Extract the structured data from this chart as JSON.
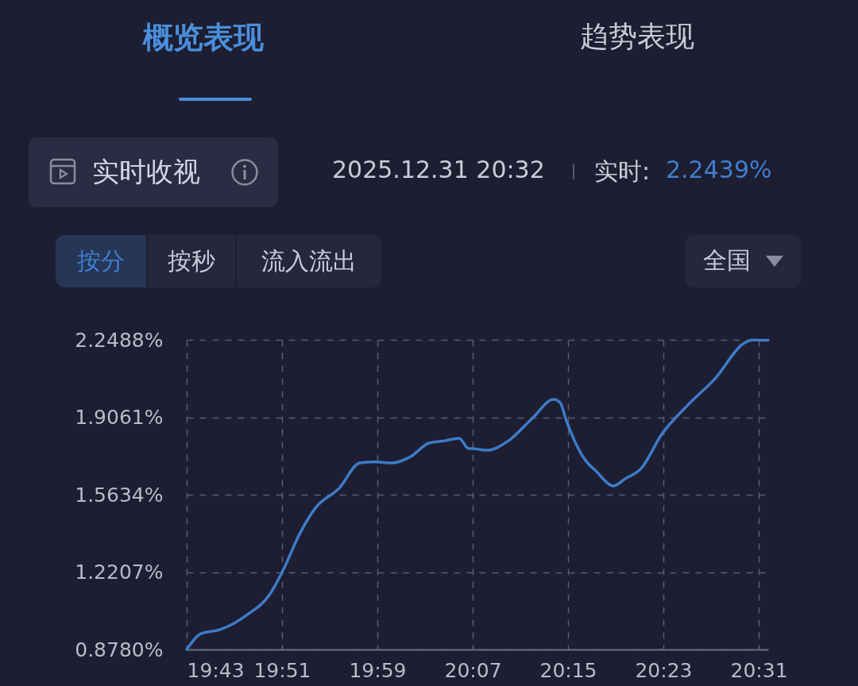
{
  "chart_data": {
    "type": "line",
    "title": "实时收视",
    "subtitle": "2025.12.31 20:32",
    "annotations": [
      "概览表现",
      "趋势表现",
      "实时:",
      "2.2439%",
      "按分",
      "按秒",
      "流入流出",
      "全国"
    ],
    "x": [
      19.7167,
      19.7367,
      19.7633,
      19.8,
      19.8333,
      19.8522,
      19.8744,
      19.8967,
      19.93,
      19.9589,
      19.9811,
      20.0033,
      20.03,
      20.0556,
      20.0778,
      20.0978,
      20.1111,
      20.1144,
      20.1367,
      20.1667,
      20.2,
      20.23,
      20.2389,
      20.2478,
      20.2744,
      20.2889,
      20.3133,
      20.33,
      20.3522,
      20.3811,
      20.4144,
      20.4556,
      20.4967,
      20.5078,
      20.53
    ],
    "series": [
      {
        "color": "#3d7bc8",
        "values": [
          0.878,
          0.948,
          0.966,
          1.029,
          1.124,
          1.233,
          1.388,
          1.504,
          1.592,
          1.704,
          1.708,
          1.704,
          1.732,
          1.792,
          1.802,
          1.813,
          1.767,
          1.767,
          1.76,
          1.802,
          1.901,
          1.985,
          1.971,
          1.89,
          1.715,
          1.669,
          1.602,
          1.634,
          1.679,
          1.831,
          1.95,
          2.077,
          2.235,
          2.248,
          2.247
        ]
      }
    ],
    "xlim": [
      19.7167,
      20.53
    ],
    "xticks": [
      {
        "value": 19.7167,
        "label": "19:43"
      },
      {
        "value": 19.85,
        "label": "19:51"
      },
      {
        "value": 19.9833,
        "label": "19:59"
      },
      {
        "value": 20.1167,
        "label": "20:07"
      },
      {
        "value": 20.25,
        "label": "20:15"
      },
      {
        "value": 20.3833,
        "label": "20:23"
      },
      {
        "value": 20.5167,
        "label": "20:31"
      }
    ],
    "ylim": [
      0.878,
      2.2488
    ],
    "yticks": [
      {
        "value": 0.878,
        "label": "0.8780%"
      },
      {
        "value": 1.2207,
        "label": "1.2207%"
      },
      {
        "value": 1.5634,
        "label": "1.5634%"
      },
      {
        "value": 1.9061,
        "label": "1.9061%"
      },
      {
        "value": 2.2488,
        "label": "2.2488%"
      }
    ],
    "grid": true,
    "marker": "none",
    "line_style": "solid"
  }
}
